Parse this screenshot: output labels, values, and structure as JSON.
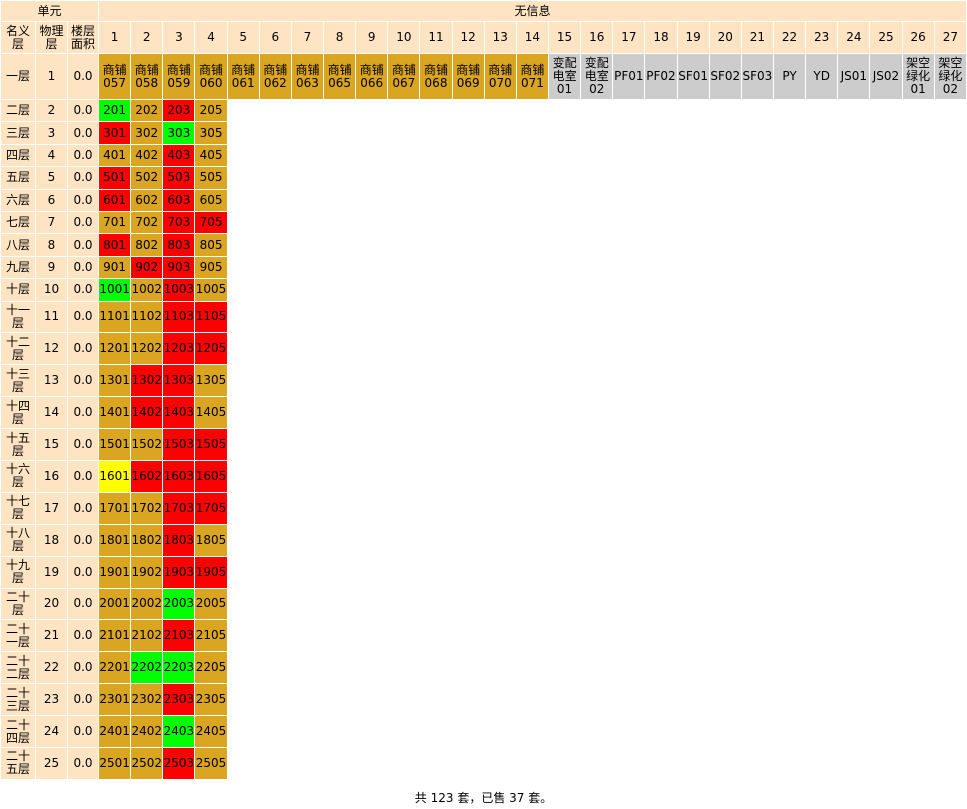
{
  "header": {
    "group_left": "单元",
    "group_right": "无信息",
    "name_col": "名义层",
    "floor_col": "物理层",
    "area_col": "楼层面积",
    "columns": [
      "1",
      "2",
      "3",
      "4",
      "5",
      "6",
      "7",
      "8",
      "9",
      "10",
      "11",
      "12",
      "13",
      "14",
      "15",
      "16",
      "17",
      "18",
      "19",
      "20",
      "21",
      "22",
      "23",
      "24",
      "25",
      "26",
      "27"
    ]
  },
  "rows": [
    {
      "name": "一层",
      "floor": "1",
      "area": "0.0",
      "cells": [
        [
          "商铺057",
          "#daa520"
        ],
        [
          "商铺058",
          "#daa520"
        ],
        [
          "商铺059",
          "#daa520"
        ],
        [
          "商铺060",
          "#daa520"
        ],
        [
          "商铺061",
          "#daa520"
        ],
        [
          "商铺062",
          "#daa520"
        ],
        [
          "商铺063",
          "#daa520"
        ],
        [
          "商铺065",
          "#daa520"
        ],
        [
          "商铺066",
          "#daa520"
        ],
        [
          "商铺067",
          "#daa520"
        ],
        [
          "商铺068",
          "#daa520"
        ],
        [
          "商铺069",
          "#daa520"
        ],
        [
          "商铺070",
          "#daa520"
        ],
        [
          "商铺071",
          "#daa520"
        ],
        [
          "变配电室01",
          "#cccccc"
        ],
        [
          "变配电室02",
          "#cccccc"
        ],
        [
          "PF01",
          "#cccccc"
        ],
        [
          "PF02",
          "#cccccc"
        ],
        [
          "SF01",
          "#cccccc"
        ],
        [
          "SF02",
          "#cccccc"
        ],
        [
          "SF03",
          "#cccccc"
        ],
        [
          "PY",
          "#cccccc"
        ],
        [
          "YD",
          "#cccccc"
        ],
        [
          "JS01",
          "#cccccc"
        ],
        [
          "JS02",
          "#cccccc"
        ],
        [
          "架空绿化01",
          "#cccccc"
        ],
        [
          "架空绿化02",
          "#cccccc"
        ]
      ]
    },
    {
      "name": "二层",
      "floor": "2",
      "area": "0.0",
      "cells": [
        [
          "201",
          "#00ff00"
        ],
        [
          "202",
          "#daa520"
        ],
        [
          "203",
          "#ff0000"
        ],
        [
          "205",
          "#daa520"
        ]
      ]
    },
    {
      "name": "三层",
      "floor": "3",
      "area": "0.0",
      "cells": [
        [
          "301",
          "#ff0000"
        ],
        [
          "302",
          "#daa520"
        ],
        [
          "303",
          "#00ff00"
        ],
        [
          "305",
          "#daa520"
        ]
      ]
    },
    {
      "name": "四层",
      "floor": "4",
      "area": "0.0",
      "cells": [
        [
          "401",
          "#daa520"
        ],
        [
          "402",
          "#daa520"
        ],
        [
          "403",
          "#ff0000"
        ],
        [
          "405",
          "#daa520"
        ]
      ]
    },
    {
      "name": "五层",
      "floor": "5",
      "area": "0.0",
      "cells": [
        [
          "501",
          "#ff0000"
        ],
        [
          "502",
          "#daa520"
        ],
        [
          "503",
          "#ff0000"
        ],
        [
          "505",
          "#daa520"
        ]
      ]
    },
    {
      "name": "六层",
      "floor": "6",
      "area": "0.0",
      "cells": [
        [
          "601",
          "#ff0000"
        ],
        [
          "602",
          "#daa520"
        ],
        [
          "603",
          "#ff0000"
        ],
        [
          "605",
          "#daa520"
        ]
      ]
    },
    {
      "name": "七层",
      "floor": "7",
      "area": "0.0",
      "cells": [
        [
          "701",
          "#daa520"
        ],
        [
          "702",
          "#daa520"
        ],
        [
          "703",
          "#ff0000"
        ],
        [
          "705",
          "#ff0000"
        ]
      ]
    },
    {
      "name": "八层",
      "floor": "8",
      "area": "0.0",
      "cells": [
        [
          "801",
          "#ff0000"
        ],
        [
          "802",
          "#daa520"
        ],
        [
          "803",
          "#ff0000"
        ],
        [
          "805",
          "#daa520"
        ]
      ]
    },
    {
      "name": "九层",
      "floor": "9",
      "area": "0.0",
      "cells": [
        [
          "901",
          "#daa520"
        ],
        [
          "902",
          "#ff0000"
        ],
        [
          "903",
          "#ff0000"
        ],
        [
          "905",
          "#daa520"
        ]
      ]
    },
    {
      "name": "十层",
      "floor": "10",
      "area": "0.0",
      "cells": [
        [
          "1001",
          "#00ff00"
        ],
        [
          "1002",
          "#daa520"
        ],
        [
          "1003",
          "#ff0000"
        ],
        [
          "1005",
          "#daa520"
        ]
      ]
    },
    {
      "name": "十一层",
      "floor": "11",
      "area": "0.0",
      "cells": [
        [
          "1101",
          "#daa520"
        ],
        [
          "1102",
          "#daa520"
        ],
        [
          "1103",
          "#ff0000"
        ],
        [
          "1105",
          "#ff0000"
        ]
      ]
    },
    {
      "name": "十二层",
      "floor": "12",
      "area": "0.0",
      "cells": [
        [
          "1201",
          "#daa520"
        ],
        [
          "1202",
          "#daa520"
        ],
        [
          "1203",
          "#ff0000"
        ],
        [
          "1205",
          "#ff0000"
        ]
      ]
    },
    {
      "name": "十三层",
      "floor": "13",
      "area": "0.0",
      "cells": [
        [
          "1301",
          "#daa520"
        ],
        [
          "1302",
          "#ff0000"
        ],
        [
          "1303",
          "#ff0000"
        ],
        [
          "1305",
          "#daa520"
        ]
      ]
    },
    {
      "name": "十四层",
      "floor": "14",
      "area": "0.0",
      "cells": [
        [
          "1401",
          "#daa520"
        ],
        [
          "1402",
          "#ff0000"
        ],
        [
          "1403",
          "#ff0000"
        ],
        [
          "1405",
          "#daa520"
        ]
      ]
    },
    {
      "name": "十五层",
      "floor": "15",
      "area": "0.0",
      "cells": [
        [
          "1501",
          "#daa520"
        ],
        [
          "1502",
          "#daa520"
        ],
        [
          "1503",
          "#ff0000"
        ],
        [
          "1505",
          "#ff0000"
        ]
      ]
    },
    {
      "name": "十六层",
      "floor": "16",
      "area": "0.0",
      "cells": [
        [
          "1601",
          "#ffff00"
        ],
        [
          "1602",
          "#ff0000"
        ],
        [
          "1603",
          "#ff0000"
        ],
        [
          "1605",
          "#ff0000"
        ]
      ]
    },
    {
      "name": "十七层",
      "floor": "17",
      "area": "0.0",
      "cells": [
        [
          "1701",
          "#daa520"
        ],
        [
          "1702",
          "#daa520"
        ],
        [
          "1703",
          "#ff0000"
        ],
        [
          "1705",
          "#ff0000"
        ]
      ]
    },
    {
      "name": "十八层",
      "floor": "18",
      "area": "0.0",
      "cells": [
        [
          "1801",
          "#daa520"
        ],
        [
          "1802",
          "#daa520"
        ],
        [
          "1803",
          "#ff0000"
        ],
        [
          "1805",
          "#daa520"
        ]
      ]
    },
    {
      "name": "十九层",
      "floor": "19",
      "area": "0.0",
      "cells": [
        [
          "1901",
          "#daa520"
        ],
        [
          "1902",
          "#daa520"
        ],
        [
          "1903",
          "#ff0000"
        ],
        [
          "1905",
          "#ff0000"
        ]
      ]
    },
    {
      "name": "二十层",
      "floor": "20",
      "area": "0.0",
      "cells": [
        [
          "2001",
          "#daa520"
        ],
        [
          "2002",
          "#daa520"
        ],
        [
          "2003",
          "#00ff00"
        ],
        [
          "2005",
          "#daa520"
        ]
      ]
    },
    {
      "name": "二十一层",
      "floor": "21",
      "area": "0.0",
      "cells": [
        [
          "2101",
          "#daa520"
        ],
        [
          "2102",
          "#daa520"
        ],
        [
          "2103",
          "#ff0000"
        ],
        [
          "2105",
          "#daa520"
        ]
      ]
    },
    {
      "name": "二十二层",
      "floor": "22",
      "area": "0.0",
      "cells": [
        [
          "2201",
          "#daa520"
        ],
        [
          "2202",
          "#00ff00"
        ],
        [
          "2203",
          "#00ff00"
        ],
        [
          "2205",
          "#daa520"
        ]
      ]
    },
    {
      "name": "二十三层",
      "floor": "23",
      "area": "0.0",
      "cells": [
        [
          "2301",
          "#daa520"
        ],
        [
          "2302",
          "#daa520"
        ],
        [
          "2303",
          "#ff0000"
        ],
        [
          "2305",
          "#daa520"
        ]
      ]
    },
    {
      "name": "二十四层",
      "floor": "24",
      "area": "0.0",
      "cells": [
        [
          "2401",
          "#daa520"
        ],
        [
          "2402",
          "#daa520"
        ],
        [
          "2403",
          "#00ff00"
        ],
        [
          "2405",
          "#daa520"
        ]
      ]
    },
    {
      "name": "二十五层",
      "floor": "25",
      "area": "0.0",
      "cells": [
        [
          "2501",
          "#daa520"
        ],
        [
          "2502",
          "#daa520"
        ],
        [
          "2503",
          "#ff0000"
        ],
        [
          "2505",
          "#daa520"
        ]
      ]
    }
  ],
  "footer": "共 123 套，已售 37 套。"
}
